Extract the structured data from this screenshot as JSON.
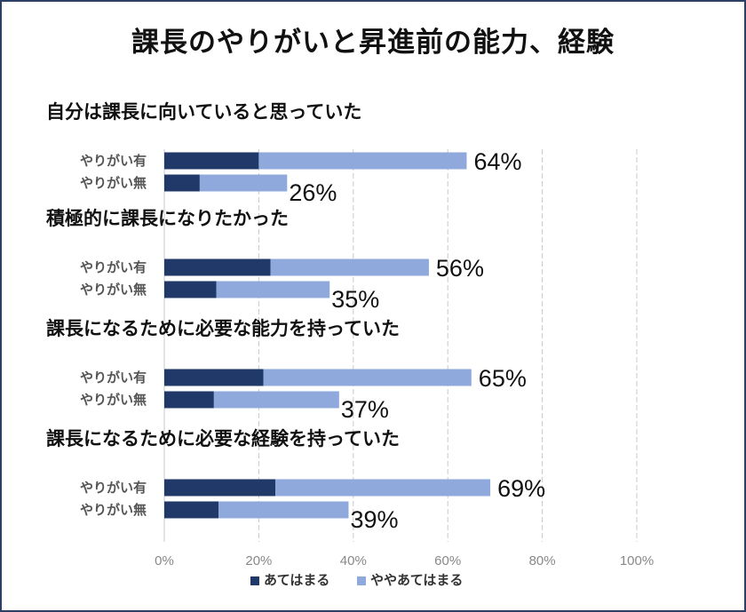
{
  "title": "課長のやりがいと昇進前の能力、経験",
  "colors": {
    "dark": "#213968",
    "light": "#8fa9dc",
    "grid": "#c9c9c9",
    "frame": "#2e3f66"
  },
  "chart_data": {
    "type": "bar",
    "orientation": "horizontal",
    "stacked": true,
    "xlim": [
      0,
      100
    ],
    "ticks": [
      "0%",
      "20%",
      "40%",
      "60%",
      "80%",
      "100%"
    ],
    "legend_position": "bottom",
    "series_names": [
      "あてはまる",
      "ややあてはまる"
    ],
    "groups": [
      {
        "title": "自分は課長に向いていると思っていた",
        "rows": [
          {
            "label": "やりがい有",
            "values": [
              20,
              44
            ],
            "total_label": "64%"
          },
          {
            "label": "やりがい無",
            "values": [
              7.5,
              18.5
            ],
            "total_label": "26%"
          }
        ]
      },
      {
        "title": "積極的に課長になりたかった",
        "rows": [
          {
            "label": "やりがい有",
            "values": [
              22.5,
              33.5
            ],
            "total_label": "56%"
          },
          {
            "label": "やりがい無",
            "values": [
              11,
              24
            ],
            "total_label": "35%"
          }
        ]
      },
      {
        "title": "課長になるために必要な能力を持っていた",
        "rows": [
          {
            "label": "やりがい有",
            "values": [
              21,
              44
            ],
            "total_label": "65%"
          },
          {
            "label": "やりがい無",
            "values": [
              10.5,
              26.5
            ],
            "total_label": "37%"
          }
        ]
      },
      {
        "title": "課長になるために必要な経験を持っていた",
        "rows": [
          {
            "label": "やりがい有",
            "values": [
              23.5,
              45.5
            ],
            "total_label": "69%"
          },
          {
            "label": "やりがい無",
            "values": [
              11.5,
              27.5
            ],
            "total_label": "39%"
          }
        ]
      }
    ]
  }
}
